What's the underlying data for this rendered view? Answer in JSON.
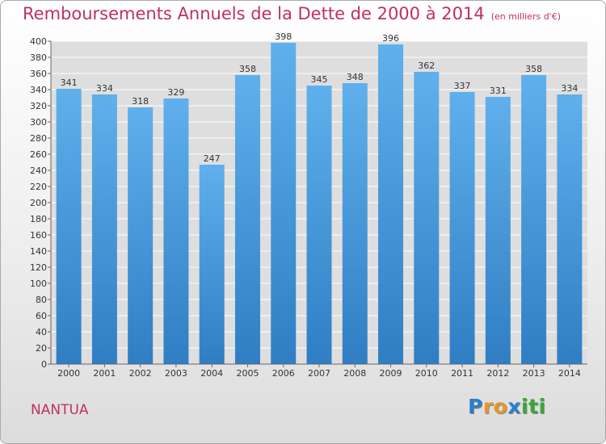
{
  "title": "Remboursements Annuels de la Dette de 2000 à 2014",
  "unit_note": "(en milliers d'€)",
  "place_name": "NANTUA",
  "logo": {
    "letters": [
      "P",
      "r",
      "o",
      "x",
      "i",
      "t",
      "i"
    ],
    "colors": [
      "#2a7fc9",
      "#e8952a",
      "#e8952a",
      "#2a7fc9",
      "#3aa63a",
      "#3aa63a",
      "#3aa63a"
    ]
  },
  "colors": {
    "bar_top": "#5fb0ec",
    "bar_bottom": "#2f7ec4",
    "grid": "#ffffff",
    "plot_bg": "#dedede",
    "accent": "#c0305e"
  },
  "chart_data": {
    "type": "bar",
    "categories": [
      "2000",
      "2001",
      "2002",
      "2003",
      "2004",
      "2005",
      "2006",
      "2007",
      "2008",
      "2009",
      "2010",
      "2011",
      "2012",
      "2013",
      "2014"
    ],
    "values": [
      341,
      334,
      318,
      329,
      247,
      358,
      398,
      345,
      348,
      396,
      362,
      337,
      331,
      358,
      334
    ],
    "title": "Remboursements Annuels de la Dette de 2000 à 2014",
    "xlabel": "",
    "ylabel": "",
    "ylim": [
      0,
      400
    ],
    "ytick_step": 20,
    "grid": true,
    "data_labels": true,
    "legend": "none"
  }
}
